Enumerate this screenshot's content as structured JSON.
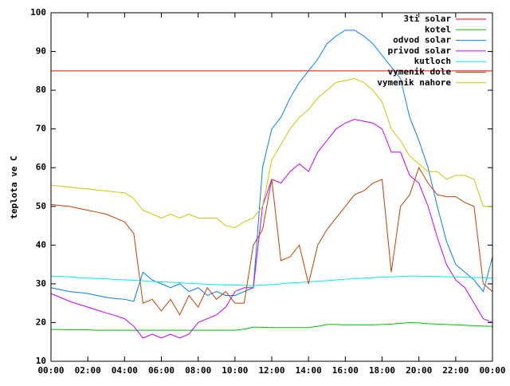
{
  "chart_data": {
    "type": "line",
    "y_label": "teplota ve C",
    "legend": "top-right",
    "xlim": [
      0,
      24
    ],
    "ylim": [
      10,
      100
    ],
    "yticks": [
      10,
      20,
      30,
      40,
      50,
      60,
      70,
      80,
      90,
      100
    ],
    "xticks": [
      {
        "value": 0,
        "label": "00:00"
      },
      {
        "value": 2,
        "label": "02:00"
      },
      {
        "value": 4,
        "label": "04:00"
      },
      {
        "value": 6,
        "label": "06:00"
      },
      {
        "value": 8,
        "label": "08:00"
      },
      {
        "value": 10,
        "label": "10:00"
      },
      {
        "value": 12,
        "label": "12:00"
      },
      {
        "value": 14,
        "label": "14:00"
      },
      {
        "value": 16,
        "label": "16:00"
      },
      {
        "value": 18,
        "label": "18:00"
      },
      {
        "value": 20,
        "label": "20:00"
      },
      {
        "value": 22,
        "label": "22:00"
      },
      {
        "value": 24,
        "label": "00:00"
      }
    ],
    "x": [
      0,
      0.5,
      1,
      1.5,
      2,
      2.5,
      3,
      3.5,
      4,
      4.5,
      5,
      5.5,
      6,
      6.5,
      7,
      7.5,
      8,
      8.5,
      9,
      9.5,
      10,
      10.5,
      11,
      11.5,
      12,
      12.5,
      13,
      13.5,
      14,
      14.5,
      15,
      15.5,
      16,
      16.5,
      17,
      17.5,
      18,
      18.5,
      19,
      19.5,
      20,
      20.5,
      21,
      21.5,
      22,
      22.5,
      23,
      23.5,
      24
    ],
    "series": [
      {
        "name": "3ti solar",
        "color": "#ff0000",
        "values": [
          85,
          85,
          85,
          85,
          85,
          85,
          85,
          85,
          85,
          85,
          85,
          85,
          85,
          85,
          85,
          85,
          85,
          85,
          85,
          85,
          85,
          85,
          85,
          85,
          85,
          85,
          85,
          85,
          85,
          85,
          85,
          85,
          85,
          85,
          85,
          85,
          85,
          85,
          85,
          85,
          85,
          85,
          85,
          85,
          85,
          85,
          85,
          85,
          85
        ]
      },
      {
        "name": "kotel",
        "color": "#00c000",
        "values": [
          18.2,
          18.2,
          18.1,
          18.1,
          18.1,
          18,
          18,
          18,
          18,
          18,
          18,
          18,
          18,
          18,
          18,
          18,
          18,
          18,
          18,
          18,
          18,
          18.3,
          18.8,
          18.8,
          18.7,
          18.7,
          18.7,
          18.7,
          18.7,
          19,
          19.5,
          19.5,
          19.4,
          19.4,
          19.4,
          19.4,
          19.5,
          19.6,
          19.8,
          20,
          19.9,
          19.7,
          19.6,
          19.5,
          19.4,
          19.3,
          19.2,
          19.1,
          19
        ]
      },
      {
        "name": "odvod solar",
        "color": "#0080ff",
        "values": [
          29,
          28.5,
          28,
          27.8,
          27.5,
          27,
          26.5,
          26.2,
          26,
          25.5,
          33,
          31,
          30,
          29,
          30,
          28,
          29,
          27,
          28,
          27,
          27,
          28,
          29,
          60,
          70,
          73,
          78,
          82,
          85,
          88,
          92,
          94,
          95.5,
          95.5,
          94,
          92,
          89,
          86,
          83,
          73,
          67,
          60,
          50,
          41,
          35,
          33,
          31,
          28,
          37
        ]
      },
      {
        "name": "privod solar",
        "color": "#c000ff",
        "values": [
          27.5,
          26.5,
          25.5,
          24.7,
          24,
          23.2,
          22.5,
          21.8,
          21,
          19,
          16,
          17,
          16,
          17,
          16,
          17,
          20,
          21,
          22,
          24,
          28,
          29,
          29,
          50,
          57,
          56,
          59,
          61,
          59,
          64,
          67,
          70,
          71.5,
          72.5,
          72,
          71.5,
          70,
          64,
          64,
          58,
          56,
          50,
          42,
          35,
          31,
          29,
          25,
          21,
          20
        ]
      },
      {
        "name": "kutloch",
        "color": "#00eeee",
        "values": [
          32,
          31.9,
          31.8,
          31.6,
          31.5,
          31.4,
          31.3,
          31.1,
          31,
          30.9,
          30.8,
          30.6,
          30.5,
          30.4,
          30.3,
          30.1,
          30,
          29.9,
          29.8,
          29.7,
          29.7,
          29.6,
          29.5,
          29.7,
          29.8,
          30,
          30.2,
          30.3,
          30.5,
          30.7,
          30.8,
          31,
          31.2,
          31.3,
          31.5,
          31.6,
          31.7,
          31.8,
          31.9,
          32,
          32,
          31.9,
          31.9,
          31.8,
          31.8,
          31.7,
          31.6,
          31.6,
          31.5
        ]
      },
      {
        "name": "vymenik dole",
        "color": "#c04000",
        "values": [
          50.5,
          50.2,
          50,
          49.5,
          49,
          48.5,
          48,
          47,
          46,
          43,
          25,
          26,
          23,
          26,
          22,
          27,
          24,
          29,
          26,
          28,
          25,
          25,
          40,
          44,
          57,
          36,
          37,
          40,
          30,
          40,
          44,
          47,
          50,
          53,
          54,
          56,
          57,
          33,
          50,
          53,
          60,
          56,
          53,
          52.5,
          52.5,
          51,
          50,
          30,
          28
        ]
      },
      {
        "name": "vymenik nahore",
        "color": "#c8c800",
        "values": [
          55.5,
          55.2,
          55,
          54.7,
          54.5,
          54.2,
          54,
          53.7,
          53.5,
          52,
          49,
          48,
          47,
          48,
          47,
          48,
          47,
          47,
          47,
          45,
          44.5,
          46,
          47,
          50,
          62,
          66,
          70,
          73,
          75,
          78,
          80,
          82,
          82.5,
          83,
          82,
          80,
          77,
          70,
          67,
          63,
          61,
          59,
          59,
          57,
          58,
          58,
          57,
          50,
          50
        ]
      }
    ]
  }
}
